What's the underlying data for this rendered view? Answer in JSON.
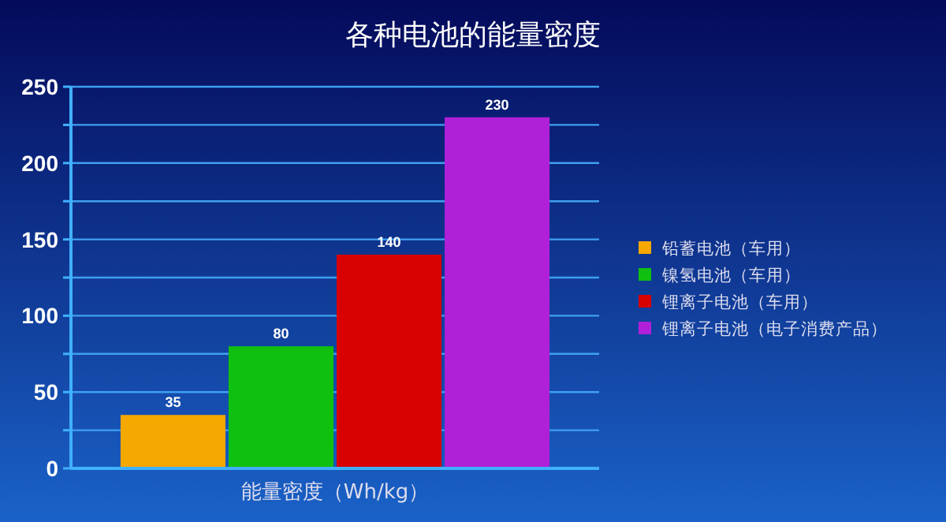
{
  "chart_data": {
    "type": "bar",
    "title": "各种电池的能量密度",
    "categories": [
      "能量密度（Wh/kg）"
    ],
    "series": [
      {
        "name": "铅蓄电池（车用）",
        "color": "#f5a800",
        "values": [
          35
        ]
      },
      {
        "name": "镍氢电池（车用）",
        "color": "#10c010",
        "values": [
          80
        ]
      },
      {
        "name": "锂离子电池（车用）",
        "color": "#d80000",
        "values": [
          140
        ]
      },
      {
        "name": "锂离子电池（电子消费产品）",
        "color": "#b020d8",
        "values": [
          230
        ]
      }
    ],
    "ylim": [
      0,
      250
    ],
    "yticks": [
      0,
      {
        "value": 25,
        "label": null
      },
      50,
      {
        "value": 75,
        "label": null
      },
      100,
      {
        "value": 125,
        "label": null
      },
      150,
      {
        "value": 175,
        "label": null
      },
      200,
      {
        "value": 225,
        "label": null
      },
      250
    ],
    "grid": "y",
    "legend": "right",
    "data_labels": true
  }
}
